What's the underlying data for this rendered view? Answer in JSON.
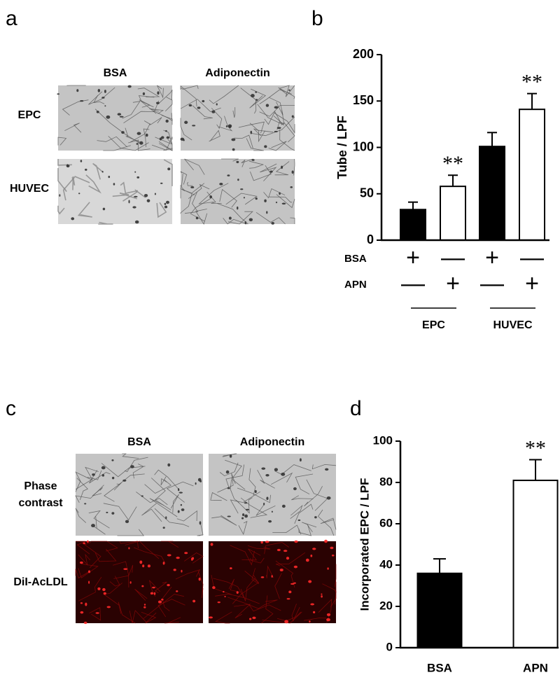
{
  "panel_a": {
    "letter": "a",
    "columns": [
      "BSA",
      "Adiponectin"
    ],
    "rows": [
      "EPC",
      "HUVEC"
    ]
  },
  "panel_c": {
    "letter": "c",
    "columns": [
      "BSA",
      "Adiponectin"
    ],
    "rows": [
      "Phase contrast",
      "DiI-AcLDL"
    ]
  },
  "chart_data": [
    {
      "letter": "b",
      "type": "bar",
      "y_label": "Tube / LPF",
      "values": [
        33,
        58,
        101,
        141
      ],
      "errors": [
        8,
        12,
        15,
        17
      ],
      "colors": [
        "#000000",
        "#ffffff",
        "#000000",
        "#ffffff"
      ],
      "significance": [
        null,
        "**",
        null,
        "**"
      ],
      "treatments": [
        {
          "name": "BSA",
          "signs": [
            "+",
            "—",
            "+",
            "—"
          ]
        },
        {
          "name": "APN",
          "signs": [
            "—",
            "+",
            "—",
            "+"
          ]
        }
      ],
      "groups": [
        "EPC",
        "HUVEC"
      ],
      "ylim": [
        0,
        200
      ],
      "yticks": [
        0,
        50,
        100,
        150,
        200
      ]
    },
    {
      "letter": "d",
      "type": "bar",
      "y_label": "Incorporated EPC / LPF",
      "categories": [
        "BSA",
        "APN"
      ],
      "values": [
        36,
        81
      ],
      "errors": [
        7,
        10
      ],
      "colors": [
        "#000000",
        "#ffffff"
      ],
      "significance": [
        null,
        "**"
      ],
      "ylim": [
        0,
        100
      ],
      "yticks": [
        0,
        20,
        40,
        60,
        80,
        100
      ]
    }
  ]
}
